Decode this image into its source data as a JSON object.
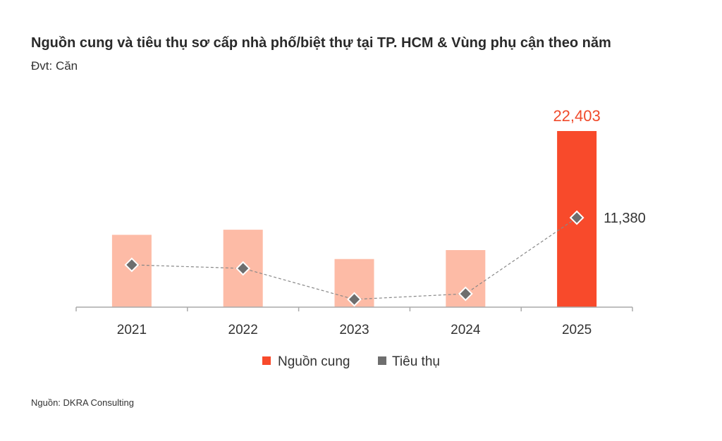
{
  "chart_data": {
    "type": "bar+line",
    "title": "Nguồn cung và tiêu thụ sơ cấp nhà phố/biệt thự tại TP. HCM & Vùng phụ cận theo năm",
    "subtitle": "Đvt: Căn",
    "source": "Nguồn: DKRA Consulting",
    "categories": [
      "2021",
      "2022",
      "2023",
      "2024",
      "2025"
    ],
    "series": [
      {
        "name": "Nguồn cung",
        "type": "bar",
        "values": [
          9200,
          9850,
          6120,
          7260,
          22403
        ],
        "colors": [
          "#fdbba6",
          "#fdbba6",
          "#fdbba6",
          "#fdbba6",
          "#f84a2b"
        ],
        "data_labels": [
          "",
          "",
          "",
          "",
          "22,403"
        ]
      },
      {
        "name": "Tiêu thụ",
        "type": "line",
        "style": "dashed",
        "marker": "diamond",
        "color": "#6e6e6e",
        "values": [
          5380,
          4930,
          990,
          1700,
          11380
        ],
        "data_labels": [
          "",
          "",
          "",
          "",
          "11,380"
        ]
      }
    ],
    "ylim": [
      0,
      22403
    ],
    "grid": false,
    "legend": "bottom",
    "legend_colors": [
      "#f84a2b",
      "#6e6e6e"
    ],
    "label_color": "#f04a2b"
  }
}
